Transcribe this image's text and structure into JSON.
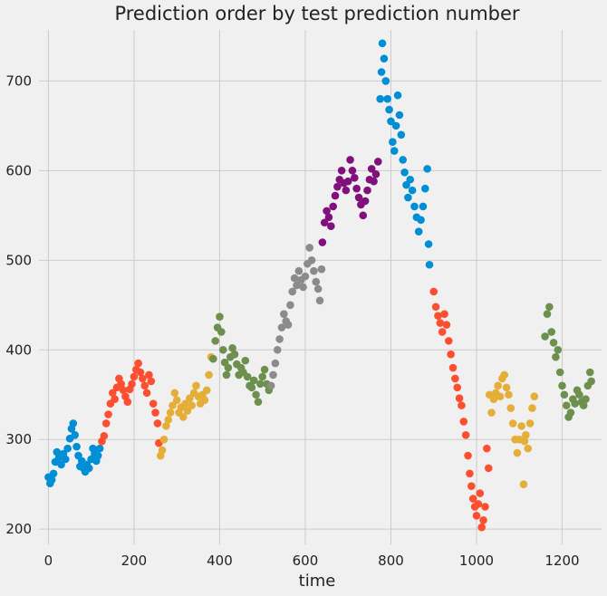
{
  "chart_data": {
    "type": "scatter",
    "title": "Prediction order by test prediction number",
    "xlabel": "time",
    "ylabel": "",
    "xlim": [
      -22,
      1292
    ],
    "ylim": [
      183,
      757
    ],
    "x_ticks": [
      0,
      200,
      400,
      600,
      800,
      1000,
      1200
    ],
    "y_ticks": [
      200,
      300,
      400,
      500,
      600,
      700
    ],
    "grid": true,
    "legend": "none",
    "colors": [
      "#008fd5",
      "#fc4f30",
      "#e5ae38",
      "#6d904f",
      "#8b8b8b",
      "#810f7c"
    ],
    "series": [
      {
        "color": "#008fd5",
        "points": [
          [
            0,
            258
          ],
          [
            4,
            251
          ],
          [
            8,
            255
          ],
          [
            12,
            262
          ],
          [
            16,
            275
          ],
          [
            20,
            286
          ],
          [
            25,
            280
          ],
          [
            30,
            272
          ],
          [
            35,
            284
          ],
          [
            40,
            278
          ],
          [
            45,
            290
          ],
          [
            50,
            301
          ],
          [
            54,
            312
          ],
          [
            58,
            318
          ],
          [
            62,
            305
          ],
          [
            66,
            292
          ],
          [
            70,
            282
          ],
          [
            74,
            270
          ],
          [
            78,
            276
          ],
          [
            82,
            268
          ],
          [
            86,
            264
          ],
          [
            90,
            272
          ],
          [
            95,
            268
          ],
          [
            100,
            278
          ],
          [
            104,
            290
          ],
          [
            108,
            284
          ],
          [
            112,
            276
          ],
          [
            116,
            282
          ],
          [
            120,
            290
          ]
        ]
      },
      {
        "color": "#fc4f30",
        "points": [
          [
            125,
            298
          ],
          [
            130,
            304
          ],
          [
            135,
            318
          ],
          [
            140,
            328
          ],
          [
            145,
            340
          ],
          [
            150,
            352
          ],
          [
            155,
            345
          ],
          [
            160,
            358
          ],
          [
            165,
            368
          ],
          [
            170,
            362
          ],
          [
            175,
            355
          ],
          [
            180,
            348
          ],
          [
            185,
            342
          ],
          [
            190,
            356
          ],
          [
            195,
            362
          ],
          [
            200,
            370
          ],
          [
            205,
            378
          ],
          [
            210,
            385
          ],
          [
            215,
            375
          ],
          [
            220,
            368
          ],
          [
            225,
            360
          ],
          [
            230,
            352
          ],
          [
            235,
            372
          ],
          [
            240,
            365
          ],
          [
            245,
            340
          ],
          [
            250,
            330
          ],
          [
            255,
            318
          ],
          [
            258,
            296
          ]
        ]
      },
      {
        "color": "#e5ae38",
        "points": [
          [
            262,
            282
          ],
          [
            266,
            288
          ],
          [
            270,
            300
          ],
          [
            275,
            315
          ],
          [
            280,
            322
          ],
          [
            285,
            330
          ],
          [
            290,
            338
          ],
          [
            295,
            352
          ],
          [
            300,
            344
          ],
          [
            305,
            330
          ],
          [
            310,
            336
          ],
          [
            315,
            325
          ],
          [
            320,
            340
          ],
          [
            325,
            332
          ],
          [
            330,
            346
          ],
          [
            335,
            338
          ],
          [
            340,
            352
          ],
          [
            345,
            360
          ],
          [
            350,
            348
          ],
          [
            355,
            340
          ],
          [
            360,
            350
          ],
          [
            365,
            344
          ],
          [
            370,
            355
          ],
          [
            375,
            372
          ],
          [
            380,
            392
          ]
        ]
      },
      {
        "color": "#6d904f",
        "points": [
          [
            385,
            390
          ],
          [
            390,
            410
          ],
          [
            395,
            425
          ],
          [
            400,
            437
          ],
          [
            404,
            420
          ],
          [
            408,
            400
          ],
          [
            412,
            386
          ],
          [
            416,
            372
          ],
          [
            420,
            380
          ],
          [
            425,
            392
          ],
          [
            430,
            402
          ],
          [
            435,
            395
          ],
          [
            440,
            384
          ],
          [
            445,
            372
          ],
          [
            450,
            380
          ],
          [
            455,
            375
          ],
          [
            460,
            388
          ],
          [
            465,
            370
          ],
          [
            470,
            360
          ],
          [
            475,
            358
          ],
          [
            480,
            366
          ],
          [
            485,
            350
          ],
          [
            490,
            342
          ],
          [
            495,
            362
          ],
          [
            500,
            370
          ],
          [
            505,
            378
          ],
          [
            510,
            362
          ],
          [
            515,
            355
          ]
        ]
      },
      {
        "color": "#8b8b8b",
        "points": [
          [
            520,
            360
          ],
          [
            525,
            372
          ],
          [
            530,
            385
          ],
          [
            535,
            400
          ],
          [
            540,
            412
          ],
          [
            545,
            425
          ],
          [
            550,
            440
          ],
          [
            555,
            432
          ],
          [
            560,
            428
          ],
          [
            565,
            450
          ],
          [
            570,
            465
          ],
          [
            575,
            480
          ],
          [
            580,
            472
          ],
          [
            585,
            488
          ],
          [
            590,
            478
          ],
          [
            595,
            470
          ],
          [
            600,
            482
          ],
          [
            605,
            496
          ],
          [
            610,
            514
          ],
          [
            615,
            500
          ],
          [
            620,
            488
          ],
          [
            625,
            476
          ],
          [
            630,
            468
          ],
          [
            634,
            455
          ],
          [
            638,
            490
          ]
        ]
      },
      {
        "color": "#810f7c",
        "points": [
          [
            640,
            520
          ],
          [
            645,
            542
          ],
          [
            650,
            555
          ],
          [
            655,
            548
          ],
          [
            660,
            538
          ],
          [
            665,
            560
          ],
          [
            670,
            572
          ],
          [
            675,
            582
          ],
          [
            680,
            590
          ],
          [
            685,
            600
          ],
          [
            690,
            586
          ],
          [
            695,
            578
          ],
          [
            700,
            588
          ],
          [
            705,
            612
          ],
          [
            710,
            600
          ],
          [
            715,
            592
          ],
          [
            720,
            580
          ],
          [
            725,
            570
          ],
          [
            730,
            562
          ],
          [
            735,
            550
          ],
          [
            740,
            566
          ],
          [
            745,
            578
          ],
          [
            750,
            590
          ],
          [
            755,
            602
          ],
          [
            760,
            588
          ],
          [
            765,
            596
          ],
          [
            770,
            610
          ]
        ]
      },
      {
        "color": "#008fd5",
        "points": [
          [
            775,
            680
          ],
          [
            778,
            710
          ],
          [
            780,
            742
          ],
          [
            784,
            725
          ],
          [
            788,
            700
          ],
          [
            792,
            680
          ],
          [
            796,
            668
          ],
          [
            800,
            655
          ],
          [
            804,
            632
          ],
          [
            808,
            622
          ],
          [
            812,
            650
          ],
          [
            816,
            684
          ],
          [
            820,
            662
          ],
          [
            824,
            640
          ],
          [
            828,
            612
          ],
          [
            832,
            598
          ],
          [
            836,
            584
          ],
          [
            840,
            570
          ],
          [
            845,
            590
          ],
          [
            850,
            578
          ],
          [
            855,
            560
          ],
          [
            860,
            548
          ],
          [
            865,
            532
          ],
          [
            870,
            545
          ],
          [
            875,
            560
          ],
          [
            880,
            580
          ],
          [
            885,
            602
          ],
          [
            888,
            518
          ],
          [
            890,
            495
          ]
        ]
      },
      {
        "color": "#fc4f30",
        "points": [
          [
            900,
            465
          ],
          [
            905,
            448
          ],
          [
            910,
            438
          ],
          [
            915,
            430
          ],
          [
            920,
            420
          ],
          [
            925,
            440
          ],
          [
            930,
            428
          ],
          [
            935,
            410
          ],
          [
            940,
            395
          ],
          [
            945,
            380
          ],
          [
            950,
            368
          ],
          [
            955,
            358
          ],
          [
            960,
            346
          ],
          [
            965,
            338
          ],
          [
            970,
            320
          ],
          [
            975,
            305
          ],
          [
            980,
            282
          ],
          [
            984,
            262
          ],
          [
            988,
            248
          ],
          [
            992,
            234
          ],
          [
            996,
            225
          ],
          [
            1000,
            215
          ],
          [
            1004,
            228
          ],
          [
            1008,
            240
          ],
          [
            1012,
            202
          ],
          [
            1016,
            210
          ],
          [
            1020,
            225
          ],
          [
            1024,
            290
          ],
          [
            1028,
            268
          ]
        ]
      },
      {
        "color": "#e5ae38",
        "points": [
          [
            1030,
            350
          ],
          [
            1035,
            330
          ],
          [
            1040,
            345
          ],
          [
            1045,
            352
          ],
          [
            1050,
            360
          ],
          [
            1055,
            348
          ],
          [
            1060,
            368
          ],
          [
            1065,
            372
          ],
          [
            1070,
            358
          ],
          [
            1075,
            350
          ],
          [
            1080,
            335
          ],
          [
            1085,
            318
          ],
          [
            1090,
            300
          ],
          [
            1095,
            285
          ],
          [
            1100,
            300
          ],
          [
            1105,
            315
          ],
          [
            1110,
            250
          ],
          [
            1112,
            298
          ],
          [
            1115,
            305
          ],
          [
            1120,
            290
          ],
          [
            1125,
            318
          ],
          [
            1130,
            335
          ],
          [
            1135,
            348
          ]
        ]
      },
      {
        "color": "#6d904f",
        "points": [
          [
            1160,
            415
          ],
          [
            1165,
            440
          ],
          [
            1170,
            448
          ],
          [
            1175,
            420
          ],
          [
            1180,
            408
          ],
          [
            1185,
            392
          ],
          [
            1190,
            400
          ],
          [
            1195,
            375
          ],
          [
            1200,
            360
          ],
          [
            1205,
            350
          ],
          [
            1210,
            338
          ],
          [
            1215,
            325
          ],
          [
            1220,
            330
          ],
          [
            1225,
            345
          ],
          [
            1230,
            340
          ],
          [
            1235,
            355
          ],
          [
            1240,
            350
          ],
          [
            1245,
            342
          ],
          [
            1250,
            338
          ],
          [
            1255,
            345
          ],
          [
            1260,
            360
          ],
          [
            1265,
            375
          ],
          [
            1268,
            365
          ]
        ]
      }
    ]
  }
}
